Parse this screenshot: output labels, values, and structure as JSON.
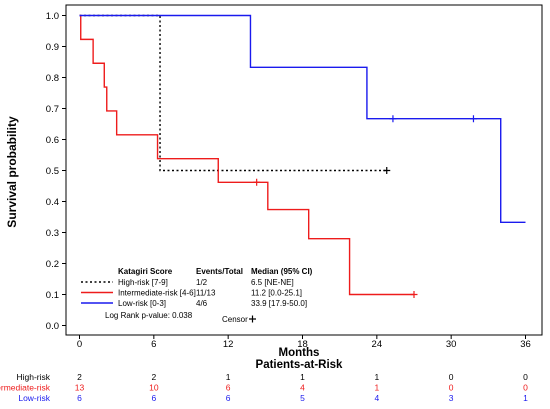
{
  "chart_data": {
    "type": "line",
    "subtype": "kaplan-meier step",
    "title": "",
    "xlabel": "Months",
    "ylabel": "Survival probability",
    "xlim": [
      0,
      36
    ],
    "ylim": [
      0,
      1
    ],
    "x_ticks": [
      0,
      6,
      12,
      18,
      24,
      30,
      36
    ],
    "y_ticks": [
      0.0,
      0.1,
      0.2,
      0.3,
      0.4,
      0.5,
      0.6,
      0.7,
      0.8,
      0.9,
      1.0
    ],
    "grid": false,
    "legend": {
      "placement": "bottom-left",
      "header_score": "Katagiri Score",
      "header_events": "Events/Total",
      "header_median": "Median (95% CI)",
      "logrank_text": "Log Rank p-value: 0.038",
      "censor_label": "Censor"
    },
    "series": [
      {
        "name": "High-risk [7-9]",
        "color": "#000000",
        "dash": true,
        "events_total": "1/2",
        "median": "6.5 [NE-NE]",
        "steps": [
          [
            0,
            1.0
          ],
          [
            6.5,
            0.5
          ]
        ],
        "end_x": 24.8,
        "censor_points": [
          [
            24.8,
            0.5
          ]
        ]
      },
      {
        "name": "Intermediate-risk [4-6]",
        "color": "#ee1c1c",
        "dash": false,
        "events_total": "11/13",
        "median": "11.2 [0.0-25.1]",
        "steps": [
          [
            0,
            1.0
          ],
          [
            0.1,
            0.923
          ],
          [
            1.1,
            0.846
          ],
          [
            2.0,
            0.769
          ],
          [
            2.2,
            0.692
          ],
          [
            3.0,
            0.615
          ],
          [
            6.3,
            0.538
          ],
          [
            11.2,
            0.462
          ],
          [
            15.2,
            0.374
          ],
          [
            18.5,
            0.28
          ],
          [
            21.8,
            0.1
          ]
        ],
        "end_x": 27.0,
        "censor_points": [
          [
            14.3,
            0.462
          ],
          [
            27.0,
            0.1
          ]
        ]
      },
      {
        "name": "Low-risk [0-3]",
        "color": "#1a1aee",
        "dash": false,
        "events_total": "4/6",
        "median": "33.9 [17.9-50.0]",
        "steps": [
          [
            0,
            1.0
          ],
          [
            13.8,
            0.833
          ],
          [
            23.2,
            0.667
          ],
          [
            34.0,
            0.333
          ]
        ],
        "end_x": 36.0,
        "censor_points": [
          [
            25.3,
            0.667
          ],
          [
            31.8,
            0.667
          ]
        ]
      }
    ],
    "risk_table": {
      "title": "Patients-at-Risk",
      "times": [
        0,
        6,
        12,
        18,
        24,
        30,
        36
      ],
      "rows": [
        {
          "label": "High-risk",
          "color": "#000000",
          "counts": [
            "2",
            "2",
            "1",
            "1",
            "1",
            "0",
            "0"
          ]
        },
        {
          "label": "Intermediate-risk",
          "color": "#ee1c1c",
          "counts": [
            "13",
            "10",
            "6",
            "4",
            "1",
            "0",
            "0"
          ]
        },
        {
          "label": "Low-risk",
          "color": "#1a1aee",
          "counts": [
            "6",
            "6",
            "6",
            "5",
            "4",
            "3",
            "1"
          ]
        }
      ]
    }
  }
}
